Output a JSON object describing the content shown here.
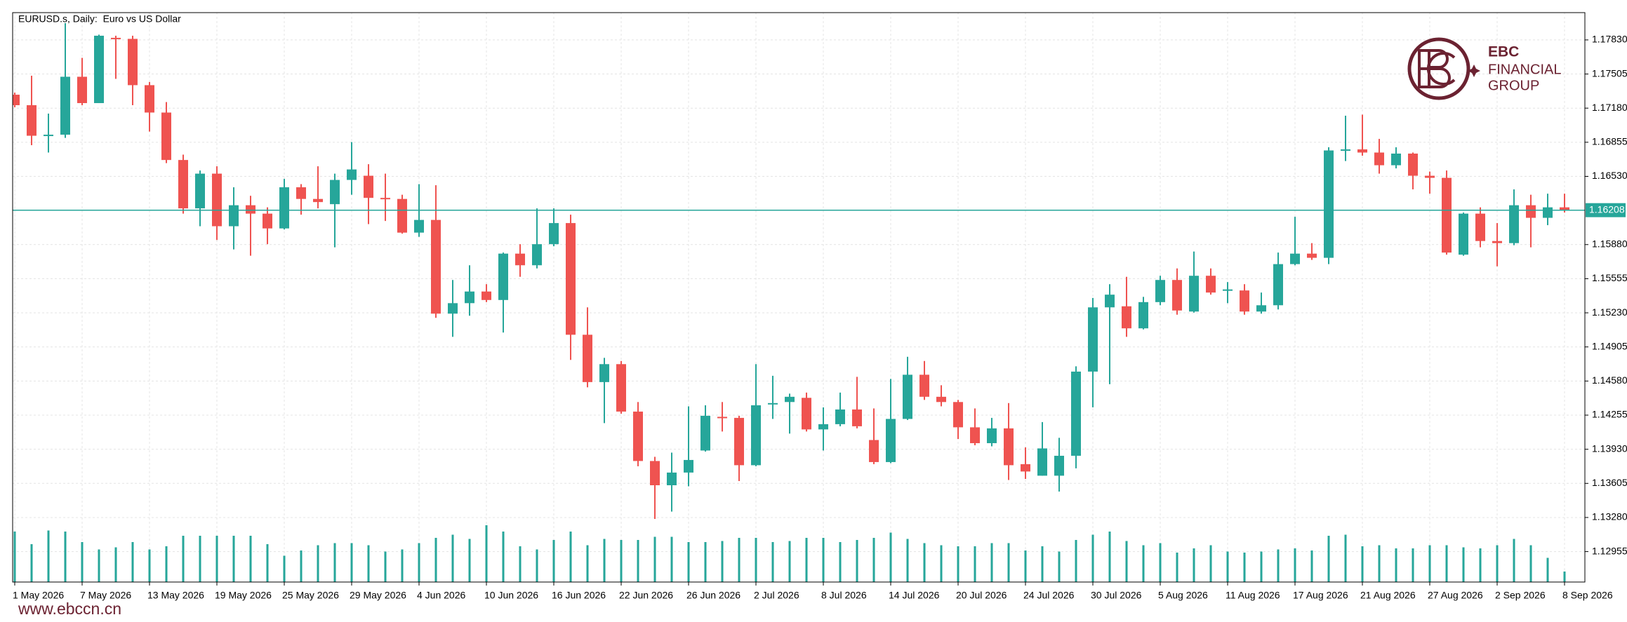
{
  "chart_data": {
    "type": "candlestick",
    "title": "EURUSD.s, Daily:  Euro vs US Dollar",
    "categories": [
      "1 May 2026",
      null,
      null,
      null,
      "7 May 2026",
      null,
      null,
      null,
      "13 May 2026",
      null,
      null,
      null,
      "19 May 2026",
      null,
      null,
      null,
      "25 May 2026",
      null,
      null,
      null,
      "29 May 2026",
      null,
      null,
      null,
      "4 Jun 2026",
      null,
      null,
      null,
      "10 Jun 2026",
      null,
      null,
      null,
      "16 Jun 2026",
      null,
      null,
      null,
      "22 Jun 2026",
      null,
      null,
      null,
      "26 Jun 2026",
      null,
      null,
      null,
      "2 Jul 2026",
      null,
      null,
      null,
      "8 Jul 2026",
      null,
      null,
      null,
      "14 Jul 2026",
      null,
      null,
      null,
      "20 Jul 2026",
      null,
      null,
      null,
      "24 Jul 2026",
      null,
      null,
      null,
      "30 Jul 2026",
      null,
      null,
      null,
      "5 Aug 2026",
      null,
      null,
      null,
      "11 Aug 2026",
      null,
      null,
      null,
      "17 Aug 2026",
      null,
      null,
      null,
      "21 Aug 2026",
      null,
      null,
      null,
      "27 Aug 2026",
      null,
      null,
      null,
      "2 Sep 2026",
      null,
      null,
      null,
      "8 Sep 2026"
    ],
    "open": [
      1.17308,
      1.17208,
      1.16917,
      1.16927,
      1.17479,
      1.17228,
      1.1785,
      1.1784,
      1.17399,
      1.17138,
      1.16686,
      1.16225,
      1.16556,
      1.16055,
      1.16255,
      1.16175,
      1.16034,
      1.16426,
      1.16315,
      1.16265,
      1.16496,
      1.16536,
      1.16325,
      1.16315,
      1.15994,
      1.16115,
      1.15222,
      1.15322,
      1.15433,
      1.15352,
      1.15794,
      1.15683,
      1.15884,
      1.16085,
      1.15021,
      1.1457,
      1.14741,
      1.14289,
      1.13818,
      1.13587,
      1.13708,
      1.13918,
      1.14239,
      1.14229,
      1.13778,
      1.14359,
      1.1438,
      1.1442,
      1.14119,
      1.14169,
      1.14309,
      1.14018,
      1.13808,
      1.14219,
      1.1464,
      1.1443,
      1.1438,
      1.14139,
      1.13988,
      1.14129,
      1.13788,
      1.13678,
      1.13678,
      1.13868,
      1.1467,
      1.15282,
      1.15292,
      1.15082,
      1.15332,
      1.15543,
      1.15242,
      1.15583,
      1.15443,
      1.15443,
      1.15242,
      1.15302,
      1.15694,
      1.15794,
      1.15754,
      1.16777,
      1.16787,
      1.16757,
      1.16636,
      1.16747,
      1.16536,
      1.16516,
      1.15784,
      1.16175,
      1.15914,
      1.15894,
      1.16255,
      1.16135,
      1.16235
    ],
    "high": [
      1.17328,
      1.17489,
      1.17128,
      1.1799,
      1.17659,
      1.1788,
      1.1787,
      1.1787,
      1.17429,
      1.17238,
      1.16737,
      1.16586,
      1.16626,
      1.16426,
      1.16345,
      1.16235,
      1.16506,
      1.16456,
      1.16626,
      1.16556,
      1.16857,
      1.16646,
      1.16556,
      1.16355,
      1.16456,
      1.16446,
      1.15543,
      1.15683,
      1.15503,
      1.15804,
      1.15884,
      1.16225,
      1.16225,
      1.16165,
      1.15282,
      1.14801,
      1.14771,
      1.1438,
      1.13858,
      1.13898,
      1.14339,
      1.14349,
      1.1438,
      1.14249,
      1.14741,
      1.1463,
      1.1446,
      1.1447,
      1.14329,
      1.1447,
      1.1462,
      1.14319,
      1.146,
      1.14811,
      1.14771,
      1.1454,
      1.144,
      1.14319,
      1.14229,
      1.1437,
      1.13948,
      1.14189,
      1.14039,
      1.1472,
      1.15372,
      1.15503,
      1.15573,
      1.15382,
      1.15583,
      1.15653,
      1.15814,
      1.15653,
      1.15523,
      1.15503,
      1.15423,
      1.15804,
      1.16145,
      1.15894,
      1.16807,
      1.17108,
      1.17118,
      1.16887,
      1.16807,
      1.16757,
      1.16576,
      1.16586,
      1.16185,
      1.16235,
      1.16085,
      1.16406,
      1.16355,
      1.16365,
      1.16365
    ],
    "low": [
      1.17188,
      1.16827,
      1.16757,
      1.16897,
      1.17208,
      1.17228,
      1.17459,
      1.17208,
      1.16957,
      1.16656,
      1.16175,
      1.16055,
      1.15924,
      1.15834,
      1.15774,
      1.15884,
      1.16024,
      1.16165,
      1.16225,
      1.15854,
      1.16355,
      1.16075,
      1.16105,
      1.15984,
      1.15954,
      1.15182,
      1.15001,
      1.15202,
      1.15332,
      1.15042,
      1.15573,
      1.15653,
      1.15864,
      1.14781,
      1.1452,
      1.14179,
      1.14269,
      1.13768,
      1.13266,
      1.13336,
      1.13577,
      1.13908,
      1.14099,
      1.13627,
      1.13768,
      1.14219,
      1.14079,
      1.14099,
      1.13918,
      1.14149,
      1.14129,
      1.13788,
      1.13798,
      1.14209,
      1.144,
      1.14339,
      1.14028,
      1.13968,
      1.13958,
      1.13637,
      1.13647,
      1.13678,
      1.13527,
      1.13748,
      1.14329,
      1.1455,
      1.15001,
      1.15072,
      1.15302,
      1.15212,
      1.15232,
      1.15403,
      1.15322,
      1.15212,
      1.15222,
      1.15262,
      1.15683,
      1.15734,
      1.15694,
      1.16676,
      1.16727,
      1.16556,
      1.16606,
      1.16406,
      1.16365,
      1.15784,
      1.15774,
      1.15854,
      1.15673,
      1.15874,
      1.15854,
      1.16065,
      1.16185
    ],
    "close": [
      1.17208,
      1.16917,
      1.16927,
      1.17479,
      1.17228,
      1.1787,
      1.1784,
      1.17399,
      1.17138,
      1.16686,
      1.16225,
      1.16556,
      1.16055,
      1.16255,
      1.16175,
      1.16034,
      1.16426,
      1.16315,
      1.16285,
      1.16496,
      1.16596,
      1.16325,
      1.16315,
      1.15994,
      1.16115,
      1.15222,
      1.15322,
      1.15433,
      1.15352,
      1.15794,
      1.15683,
      1.15884,
      1.16085,
      1.15021,
      1.1457,
      1.14741,
      1.14289,
      1.13818,
      1.13587,
      1.13708,
      1.13828,
      1.14249,
      1.14229,
      1.13778,
      1.14349,
      1.1437,
      1.1443,
      1.14119,
      1.14169,
      1.14309,
      1.14149,
      1.13808,
      1.14219,
      1.1464,
      1.1443,
      1.1438,
      1.14139,
      1.13988,
      1.14129,
      1.13778,
      1.13718,
      1.13938,
      1.13868,
      1.1467,
      1.15282,
      1.15403,
      1.15082,
      1.15332,
      1.15543,
      1.15252,
      1.15583,
      1.15423,
      1.15453,
      1.15242,
      1.15302,
      1.15694,
      1.15794,
      1.15754,
      1.16777,
      1.16787,
      1.16757,
      1.16636,
      1.16747,
      1.16536,
      1.16516,
      1.15804,
      1.16175,
      1.15914,
      1.15894,
      1.16255,
      1.16135,
      1.16235,
      1.16208
    ],
    "volume": [
      48000,
      36000,
      49000,
      48000,
      38000,
      31000,
      33000,
      38000,
      31000,
      34000,
      44000,
      44000,
      44000,
      44000,
      44000,
      36000,
      25000,
      30000,
      35000,
      37000,
      37000,
      35000,
      29000,
      31000,
      37000,
      42000,
      45000,
      41000,
      54000,
      48000,
      34000,
      31000,
      40000,
      48000,
      35000,
      41000,
      40000,
      40000,
      43000,
      43000,
      38000,
      38000,
      39000,
      42000,
      42000,
      38000,
      39000,
      42000,
      42000,
      38000,
      40000,
      42000,
      47000,
      41000,
      37000,
      35000,
      34000,
      34000,
      37000,
      37000,
      30000,
      34000,
      29000,
      40000,
      45000,
      48000,
      39000,
      35000,
      37000,
      28000,
      32000,
      35000,
      29000,
      28000,
      29000,
      31000,
      32000,
      30000,
      44000,
      45000,
      34000,
      35000,
      32000,
      32000,
      35000,
      35000,
      33000,
      32000,
      35000,
      41000,
      35000,
      23000,
      10000
    ],
    "up_color": "#26a69a",
    "down_color": "#ef5350",
    "volume_color": "#26a69a",
    "price_line_color": "#26a69a",
    "ylim": [
      1.12665,
      1.1809
    ],
    "yticks": [
      {
        "value": 1.1783,
        "label": "1.17830"
      },
      {
        "value": 1.17505,
        "label": "1.17505"
      },
      {
        "value": 1.1718,
        "label": "1.17180"
      },
      {
        "value": 1.16855,
        "label": "1.16855"
      },
      {
        "value": 1.1653,
        "label": "1.16530"
      },
      {
        "value": 1.1588,
        "label": "1.15880"
      },
      {
        "value": 1.15555,
        "label": "1.15555"
      },
      {
        "value": 1.1523,
        "label": "1.15230"
      },
      {
        "value": 1.14905,
        "label": "1.14905"
      },
      {
        "value": 1.1458,
        "label": "1.14580"
      },
      {
        "value": 1.14255,
        "label": "1.14255"
      },
      {
        "value": 1.1393,
        "label": "1.13930"
      },
      {
        "value": 1.13605,
        "label": "1.13605"
      },
      {
        "value": 1.1328,
        "label": "1.13280"
      },
      {
        "value": 1.12955,
        "label": "1.12955"
      }
    ],
    "grid": true
  },
  "logo": {
    "name": "EBC",
    "line1": "FINANCIAL",
    "line2": "GROUP"
  },
  "footer": "www.ebccn.cn"
}
